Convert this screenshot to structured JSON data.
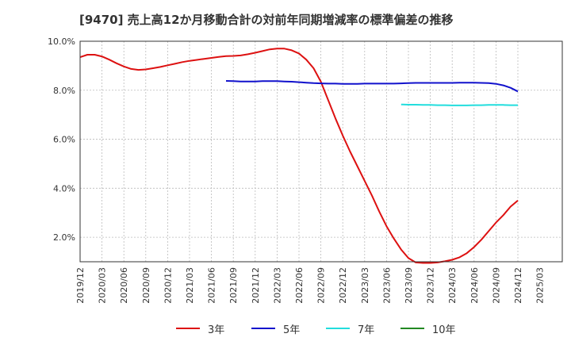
{
  "title": "[9470]  売上高12か月移動合計の対前年同期増減率の標準偏差の推移",
  "chart_data": {
    "type": "line",
    "title": "[9470]  売上高12か月移動合計の対前年同期増減率の標準偏差の推移",
    "xlabel": "",
    "ylabel": "",
    "x_start": "2019/12",
    "x_ticks": [
      "2019/12",
      "2020/03",
      "2020/06",
      "2020/09",
      "2020/12",
      "2021/03",
      "2021/06",
      "2021/09",
      "2021/12",
      "2022/03",
      "2022/06",
      "2022/09",
      "2022/12",
      "2023/03",
      "2023/06",
      "2023/09",
      "2023/12",
      "2024/03",
      "2024/06",
      "2024/09",
      "2024/12",
      "2025/03"
    ],
    "y_ticks": [
      "2.0%",
      "4.0%",
      "6.0%",
      "8.0%",
      "10.0%"
    ],
    "y_tick_values": [
      2,
      4,
      6,
      8,
      10
    ],
    "ylim": [
      1.0,
      10.0
    ],
    "grid": true,
    "legend_position": "bottom",
    "series": [
      {
        "name": "3年",
        "color": "#dd1111",
        "x": [
          "2019/12",
          "2020/01",
          "2020/02",
          "2020/03",
          "2020/04",
          "2020/05",
          "2020/06",
          "2020/07",
          "2020/08",
          "2020/09",
          "2020/10",
          "2020/11",
          "2020/12",
          "2021/01",
          "2021/02",
          "2021/03",
          "2021/04",
          "2021/05",
          "2021/06",
          "2021/07",
          "2021/08",
          "2021/09",
          "2021/10",
          "2021/11",
          "2021/12",
          "2022/01",
          "2022/02",
          "2022/03",
          "2022/04",
          "2022/05",
          "2022/06",
          "2022/07",
          "2022/08",
          "2022/09",
          "2022/10",
          "2022/11",
          "2022/12",
          "2023/01",
          "2023/02",
          "2023/03",
          "2023/04",
          "2023/05",
          "2023/06",
          "2023/07",
          "2023/08",
          "2023/09",
          "2023/10",
          "2023/11",
          "2023/12",
          "2024/01",
          "2024/02",
          "2024/03",
          "2024/04",
          "2024/05",
          "2024/06",
          "2024/07",
          "2024/08",
          "2024/09",
          "2024/10",
          "2024/11",
          "2024/12"
        ],
        "values": [
          9.35,
          9.45,
          9.45,
          9.38,
          9.25,
          9.1,
          8.97,
          8.87,
          8.83,
          8.85,
          8.9,
          8.95,
          9.02,
          9.08,
          9.15,
          9.2,
          9.24,
          9.28,
          9.32,
          9.36,
          9.39,
          9.4,
          9.42,
          9.47,
          9.53,
          9.6,
          9.67,
          9.7,
          9.7,
          9.63,
          9.5,
          9.25,
          8.9,
          8.35,
          7.6,
          6.85,
          6.15,
          5.5,
          4.9,
          4.3,
          3.7,
          3.05,
          2.45,
          1.95,
          1.5,
          1.15,
          0.97,
          0.95,
          0.95,
          0.97,
          1.02,
          1.08,
          1.18,
          1.35,
          1.6,
          1.9,
          2.25,
          2.6,
          2.9,
          3.25,
          3.5
        ]
      },
      {
        "name": "5年",
        "color": "#1111cc",
        "x": [
          "2021/08",
          "2021/09",
          "2021/10",
          "2021/11",
          "2021/12",
          "2022/01",
          "2022/02",
          "2022/03",
          "2022/04",
          "2022/05",
          "2022/06",
          "2022/07",
          "2022/08",
          "2022/09",
          "2022/10",
          "2022/11",
          "2022/12",
          "2023/01",
          "2023/02",
          "2023/03",
          "2023/04",
          "2023/05",
          "2023/06",
          "2023/07",
          "2023/08",
          "2023/09",
          "2023/10",
          "2023/11",
          "2023/12",
          "2024/01",
          "2024/02",
          "2024/03",
          "2024/04",
          "2024/05",
          "2024/06",
          "2024/07",
          "2024/08",
          "2024/09",
          "2024/10",
          "2024/11",
          "2024/12"
        ],
        "values": [
          8.38,
          8.37,
          8.36,
          8.36,
          8.36,
          8.37,
          8.37,
          8.37,
          8.36,
          8.35,
          8.33,
          8.31,
          8.29,
          8.28,
          8.27,
          8.27,
          8.26,
          8.26,
          8.26,
          8.27,
          8.27,
          8.27,
          8.27,
          8.27,
          8.28,
          8.29,
          8.3,
          8.3,
          8.3,
          8.3,
          8.3,
          8.3,
          8.31,
          8.31,
          8.31,
          8.3,
          8.29,
          8.26,
          8.2,
          8.1,
          7.95
        ]
      },
      {
        "name": "7年",
        "color": "#22dddd",
        "x": [
          "2023/08",
          "2023/09",
          "2023/10",
          "2023/11",
          "2023/12",
          "2024/01",
          "2024/02",
          "2024/03",
          "2024/04",
          "2024/05",
          "2024/06",
          "2024/07",
          "2024/08",
          "2024/09",
          "2024/10",
          "2024/11",
          "2024/12"
        ],
        "values": [
          7.42,
          7.41,
          7.41,
          7.4,
          7.4,
          7.39,
          7.39,
          7.38,
          7.38,
          7.38,
          7.39,
          7.39,
          7.4,
          7.4,
          7.4,
          7.39,
          7.39
        ]
      },
      {
        "name": "10年",
        "color": "#228822",
        "x": [],
        "values": []
      }
    ]
  }
}
